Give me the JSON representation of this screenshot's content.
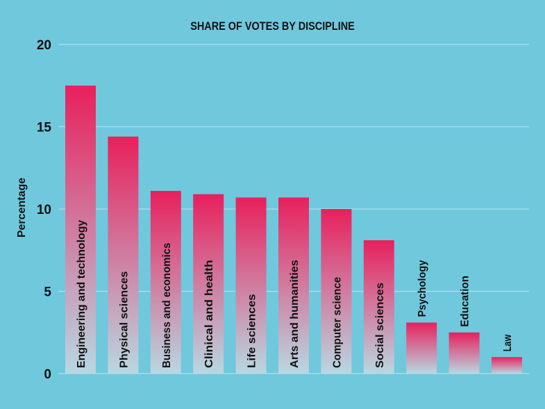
{
  "chart_data": {
    "type": "bar",
    "title": "SHARE OF VOTES BY DISCIPLINE",
    "xlabel": "",
    "ylabel": "Percentage",
    "ylim": [
      0,
      20
    ],
    "yticks": [
      0,
      5,
      10,
      15,
      20
    ],
    "grid": true,
    "categories": [
      "Engineering and technology",
      "Physical sciences",
      "Business and economics",
      "Clinical and health",
      "Life sciences",
      "Arts and humanities",
      "Computer science",
      "Social sciences",
      "Psychology",
      "Education",
      "Law"
    ],
    "values": [
      17.5,
      14.4,
      11.1,
      10.9,
      10.7,
      10.7,
      10.0,
      8.1,
      3.1,
      2.5,
      1.0
    ],
    "colors": {
      "background": "#70c8dd",
      "bar_top": "#e8205c",
      "bar_bottom": "#b8d8e2",
      "grid": "#a6e0ee"
    }
  }
}
